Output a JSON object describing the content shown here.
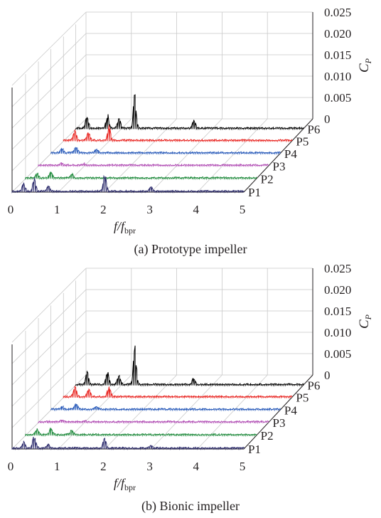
{
  "figure": [
    {
      "caption": "(a) Prototype impeller",
      "chart_data": {
        "type": "line",
        "subtype": "3d-waterfall",
        "x_label": "f/f",
        "x_label_subscript": "bpr",
        "x_ticks": [
          "0",
          "1",
          "2",
          "3",
          "4",
          "5"
        ],
        "xlim": [
          0,
          5
        ],
        "z_label": "C",
        "z_label_subscript": "P",
        "z_ticks": [
          "0",
          "0.005",
          "0.010",
          "0.015",
          "0.020",
          "0.025"
        ],
        "zlim": [
          0,
          0.025
        ],
        "grid": true,
        "series": [
          {
            "name": "P1",
            "color": "#2b2a6b",
            "peaks": [
              {
                "x": 0.25,
                "y": 0.0022
              },
              {
                "x": 0.48,
                "y": 0.0032
              },
              {
                "x": 0.78,
                "y": 0.0016
              },
              {
                "x": 2.0,
                "y": 0.0045
              },
              {
                "x": 3.0,
                "y": 0.0012
              }
            ]
          },
          {
            "name": "P2",
            "color": "#1f8a3c",
            "peaks": [
              {
                "x": 0.25,
                "y": 0.0012
              },
              {
                "x": 0.55,
                "y": 0.0016
              },
              {
                "x": 1.0,
                "y": 0.0011
              }
            ]
          },
          {
            "name": "P3",
            "color": "#b04bb3",
            "peaks": [
              {
                "x": 0.5,
                "y": 0.0006
              },
              {
                "x": 1.0,
                "y": 0.0004
              }
            ]
          },
          {
            "name": "P4",
            "color": "#2457b8",
            "peaks": [
              {
                "x": 0.25,
                "y": 0.0012
              },
              {
                "x": 0.55,
                "y": 0.0018
              },
              {
                "x": 1.0,
                "y": 0.0009
              }
            ]
          },
          {
            "name": "P5",
            "color": "#e8231f",
            "peaks": [
              {
                "x": 0.25,
                "y": 0.0028
              },
              {
                "x": 0.55,
                "y": 0.0022
              },
              {
                "x": 1.0,
                "y": 0.0036
              }
            ]
          },
          {
            "name": "P6",
            "color": "#000000",
            "peaks": [
              {
                "x": 0.25,
                "y": 0.0034
              },
              {
                "x": 0.7,
                "y": 0.0035
              },
              {
                "x": 0.95,
                "y": 0.0028
              },
              {
                "x": 1.3,
                "y": 0.0092
              },
              {
                "x": 2.6,
                "y": 0.0024
              }
            ]
          }
        ]
      }
    },
    {
      "caption": "(b) Bionic impeller",
      "chart_data": {
        "type": "line",
        "subtype": "3d-waterfall",
        "x_label": "f/f",
        "x_label_subscript": "bpr",
        "x_ticks": [
          "0",
          "1",
          "2",
          "3",
          "4",
          "5"
        ],
        "xlim": [
          0,
          5
        ],
        "z_label": "C",
        "z_label_subscript": "P",
        "z_ticks": [
          "0",
          "0.005",
          "0.010",
          "0.015",
          "0.020",
          "0.025"
        ],
        "zlim": [
          0,
          0.025
        ],
        "grid": true,
        "series": [
          {
            "name": "P1",
            "color": "#2b2a6b",
            "peaks": [
              {
                "x": 0.25,
                "y": 0.0018
              },
              {
                "x": 0.48,
                "y": 0.0036
              },
              {
                "x": 0.78,
                "y": 0.0012
              },
              {
                "x": 2.0,
                "y": 0.0028
              },
              {
                "x": 3.0,
                "y": 0.0008
              }
            ]
          },
          {
            "name": "P2",
            "color": "#1f8a3c",
            "peaks": [
              {
                "x": 0.25,
                "y": 0.0014
              },
              {
                "x": 0.55,
                "y": 0.0018
              },
              {
                "x": 1.0,
                "y": 0.0012
              }
            ]
          },
          {
            "name": "P3",
            "color": "#b04bb3",
            "peaks": [
              {
                "x": 0.5,
                "y": 0.0006
              },
              {
                "x": 1.0,
                "y": 0.0004
              }
            ]
          },
          {
            "name": "P4",
            "color": "#2457b8",
            "peaks": [
              {
                "x": 0.25,
                "y": 0.0008
              },
              {
                "x": 0.55,
                "y": 0.0014
              },
              {
                "x": 1.0,
                "y": 0.0007
              }
            ]
          },
          {
            "name": "P5",
            "color": "#e8231f",
            "peaks": [
              {
                "x": 0.25,
                "y": 0.0026
              },
              {
                "x": 0.55,
                "y": 0.0022
              },
              {
                "x": 1.0,
                "y": 0.0028
              }
            ]
          },
          {
            "name": "P6",
            "color": "#000000",
            "peaks": [
              {
                "x": 0.25,
                "y": 0.0034
              },
              {
                "x": 0.7,
                "y": 0.0033
              },
              {
                "x": 0.95,
                "y": 0.0026
              },
              {
                "x": 1.3,
                "y": 0.0098
              },
              {
                "x": 2.6,
                "y": 0.0018
              }
            ]
          }
        ]
      }
    }
  ]
}
